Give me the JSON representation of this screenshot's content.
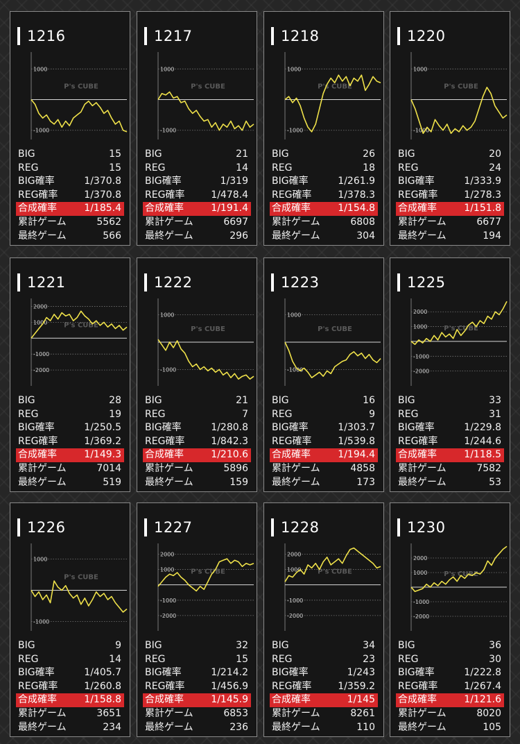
{
  "labels": {
    "big": "BIG",
    "reg": "REG",
    "big_rate": "BIG確率",
    "reg_rate": "REG確率",
    "combined_rate": "合成確率",
    "total_games": "累計ゲーム",
    "last_games": "最終ゲーム"
  },
  "watermark": "P's CUBE",
  "colors": {
    "line": "#f0e24a",
    "highlight": "#d7282b",
    "zero_line": "#d8d8d8"
  },
  "machines": [
    {
      "id": "1216",
      "big": "15",
      "reg": "15",
      "big_rate": "1/370.8",
      "reg_rate": "1/370.8",
      "combined_rate": "1/185.4",
      "total_games": "5562",
      "last_games": "566",
      "graph": {
        "ticks": [
          "1000",
          "-1000"
        ],
        "tick_values": [
          1000,
          -1000
        ],
        "ylim": [
          -1300,
          1550
        ],
        "series": [
          0,
          -150,
          -450,
          -600,
          -500,
          -700,
          -800,
          -650,
          -900,
          -700,
          -850,
          -600,
          -500,
          -400,
          -150,
          -50,
          -200,
          -100,
          -250,
          -450,
          -350,
          -600,
          -800,
          -700,
          -1000,
          -1050
        ]
      }
    },
    {
      "id": "1217",
      "big": "21",
      "reg": "14",
      "big_rate": "1/319",
      "reg_rate": "1/478.4",
      "combined_rate": "1/191.4",
      "total_games": "6697",
      "last_games": "296",
      "graph": {
        "ticks": [
          "1000",
          "-1000"
        ],
        "tick_values": [
          1000,
          -1000
        ],
        "ylim": [
          -1300,
          1550
        ],
        "series": [
          0,
          200,
          150,
          250,
          50,
          100,
          -100,
          -50,
          -300,
          -450,
          -350,
          -550,
          -700,
          -650,
          -900,
          -750,
          -1000,
          -800,
          -900,
          -700,
          -950,
          -850,
          -1000,
          -700,
          -900,
          -800
        ]
      }
    },
    {
      "id": "1218",
      "big": "26",
      "reg": "18",
      "big_rate": "1/261.9",
      "reg_rate": "1/378.3",
      "combined_rate": "1/154.8",
      "total_games": "6808",
      "last_games": "304",
      "graph": {
        "ticks": [
          "1000",
          "-1000"
        ],
        "tick_values": [
          1000,
          -1000
        ],
        "ylim": [
          -1300,
          1550
        ],
        "series": [
          0,
          100,
          -100,
          50,
          -200,
          -600,
          -900,
          -1050,
          -800,
          -300,
          200,
          500,
          700,
          550,
          800,
          600,
          750,
          450,
          700,
          600,
          800,
          300,
          500,
          750,
          600,
          550
        ]
      }
    },
    {
      "id": "1220",
      "big": "20",
      "reg": "24",
      "big_rate": "1/333.9",
      "reg_rate": "1/278.3",
      "combined_rate": "1/151.8",
      "total_games": "6677",
      "last_games": "194",
      "graph": {
        "ticks": [
          "1000",
          "-1000"
        ],
        "tick_values": [
          1000,
          -1000
        ],
        "ylim": [
          -1300,
          1550
        ],
        "series": [
          0,
          -300,
          -700,
          -1100,
          -900,
          -1050,
          -650,
          -850,
          -1000,
          -800,
          -1100,
          -950,
          -1050,
          -850,
          -1000,
          -900,
          -700,
          -300,
          100,
          400,
          200,
          -200,
          -400,
          -600,
          -500
        ]
      }
    },
    {
      "id": "1221",
      "big": "28",
      "reg": "19",
      "big_rate": "1/250.5",
      "reg_rate": "1/369.2",
      "combined_rate": "1/149.3",
      "total_games": "7014",
      "last_games": "519",
      "graph": {
        "ticks": [
          "2000",
          "1000",
          "-1000",
          "-2000"
        ],
        "tick_values": [
          2000,
          1000,
          -1000,
          -2000
        ],
        "ylim": [
          -3000,
          2500
        ],
        "series": [
          0,
          300,
          600,
          900,
          1300,
          1100,
          1500,
          1200,
          1600,
          1400,
          1500,
          1100,
          1300,
          1700,
          1400,
          1200,
          900,
          1100,
          800,
          1000,
          700,
          900,
          600,
          800,
          500,
          700
        ]
      }
    },
    {
      "id": "1222",
      "big": "21",
      "reg": "7",
      "big_rate": "1/280.8",
      "reg_rate": "1/842.3",
      "combined_rate": "1/210.6",
      "total_games": "5896",
      "last_games": "159",
      "graph": {
        "ticks": [
          "1000",
          "-1000"
        ],
        "tick_values": [
          1000,
          -1000
        ],
        "ylim": [
          -1600,
          1600
        ],
        "series": [
          100,
          -100,
          -300,
          0,
          -200,
          50,
          -250,
          -400,
          -700,
          -900,
          -800,
          -1000,
          -900,
          -1050,
          -950,
          -1100,
          -1000,
          -1200,
          -1100,
          -1300,
          -1150,
          -1350,
          -1250,
          -1200,
          -1350,
          -1250
        ]
      }
    },
    {
      "id": "1223",
      "big": "16",
      "reg": "9",
      "big_rate": "1/303.7",
      "reg_rate": "1/539.8",
      "combined_rate": "1/194.4",
      "total_games": "4858",
      "last_games": "173",
      "graph": {
        "ticks": [
          "1000",
          "-1000"
        ],
        "tick_values": [
          1000,
          -1000
        ],
        "ylim": [
          -1600,
          1600
        ],
        "series": [
          0,
          -300,
          -700,
          -950,
          -1050,
          -950,
          -1100,
          -1300,
          -1200,
          -1100,
          -1250,
          -1050,
          -1150,
          -900,
          -800,
          -700,
          -650,
          -450,
          -350,
          -500,
          -400,
          -600,
          -450,
          -650,
          -750,
          -600
        ]
      }
    },
    {
      "id": "1225",
      "big": "33",
      "reg": "31",
      "big_rate": "1/229.8",
      "reg_rate": "1/244.6",
      "combined_rate": "1/118.5",
      "total_games": "7582",
      "last_games": "53",
      "graph": {
        "ticks": [
          "2000",
          "1000",
          "-1000",
          "-2000"
        ],
        "tick_values": [
          2000,
          1000,
          -1000,
          -2000
        ],
        "ylim": [
          -3000,
          2900
        ],
        "series": [
          0,
          -200,
          100,
          -100,
          200,
          0,
          400,
          100,
          600,
          300,
          500,
          200,
          800,
          400,
          700,
          1100,
          1300,
          1000,
          1400,
          1200,
          1700,
          1500,
          2000,
          1800,
          2200,
          2700
        ]
      }
    },
    {
      "id": "1226",
      "big": "9",
      "reg": "14",
      "big_rate": "1/405.7",
      "reg_rate": "1/260.8",
      "combined_rate": "1/158.8",
      "total_games": "3651",
      "last_games": "234",
      "graph": {
        "ticks": [
          "1000",
          "-1000"
        ],
        "tick_values": [
          1000,
          -1000
        ],
        "ylim": [
          -1300,
          1500
        ],
        "series": [
          0,
          -200,
          -50,
          -300,
          -150,
          -400,
          300,
          100,
          0,
          150,
          -100,
          -250,
          -150,
          -450,
          -250,
          -500,
          -300,
          -50,
          -200,
          -100,
          -300,
          -200,
          -400,
          -550,
          -700,
          -600
        ]
      }
    },
    {
      "id": "1227",
      "big": "32",
      "reg": "15",
      "big_rate": "1/214.2",
      "reg_rate": "1/456.9",
      "combined_rate": "1/145.9",
      "total_games": "6853",
      "last_games": "236",
      "graph": {
        "ticks": [
          "2000",
          "1000",
          "-1000",
          "-2000"
        ],
        "tick_values": [
          2000,
          1000,
          -1000,
          -2000
        ],
        "ylim": [
          -3000,
          2700
        ],
        "series": [
          -100,
          200,
          500,
          700,
          600,
          800,
          500,
          300,
          0,
          -200,
          -400,
          -100,
          -300,
          200,
          700,
          1000,
          1500,
          1600,
          1700,
          1400,
          1600,
          1500,
          1200,
          1400,
          1300,
          1400
        ]
      }
    },
    {
      "id": "1228",
      "big": "34",
      "reg": "23",
      "big_rate": "1/243",
      "reg_rate": "1/359.2",
      "combined_rate": "1/145",
      "total_games": "8261",
      "last_games": "110",
      "graph": {
        "ticks": [
          "2000",
          "1000",
          "-1000",
          "-2000"
        ],
        "tick_values": [
          2000,
          1000,
          -1000,
          -2000
        ],
        "ylim": [
          -3000,
          2700
        ],
        "series": [
          200,
          600,
          500,
          800,
          1000,
          700,
          1300,
          1100,
          1400,
          1000,
          1500,
          1800,
          1300,
          1500,
          1700,
          1400,
          1900,
          2300,
          2400,
          2200,
          2000,
          1800,
          1600,
          1400,
          1100,
          1200
        ]
      }
    },
    {
      "id": "1230",
      "big": "36",
      "reg": "30",
      "big_rate": "1/222.8",
      "reg_rate": "1/267.4",
      "combined_rate": "1/121.6",
      "total_games": "8020",
      "last_games": "105",
      "graph": {
        "ticks": [
          "2000",
          "1000",
          "-1000",
          "-2000"
        ],
        "tick_values": [
          2000,
          1000,
          -1000,
          -2000
        ],
        "ylim": [
          -3000,
          3000
        ],
        "series": [
          0,
          -300,
          -200,
          -100,
          200,
          0,
          300,
          100,
          400,
          200,
          500,
          700,
          400,
          800,
          600,
          900,
          800,
          1000,
          900,
          1200,
          1800,
          1500,
          2000,
          2300,
          2600,
          2800
        ]
      }
    }
  ]
}
